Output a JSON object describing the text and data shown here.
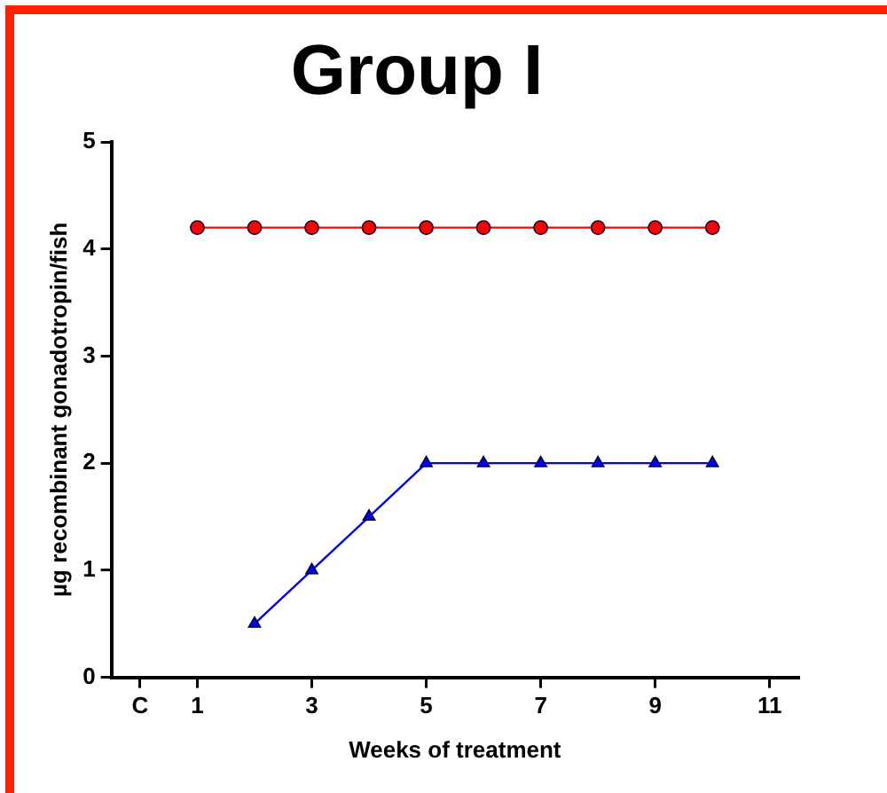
{
  "chart_data": {
    "type": "line",
    "title": "Group I",
    "xlabel": "Weeks of treatment",
    "ylabel": "µg recombinant gonadotropin/fish",
    "xlim": [
      -0.5,
      11.5
    ],
    "xticks": [
      {
        "value": 0,
        "label": "C"
      },
      1,
      3,
      5,
      7,
      9,
      11
    ],
    "ylim": [
      0,
      5
    ],
    "yticks": [
      0,
      1,
      2,
      3,
      4,
      5
    ],
    "grid": false,
    "legend": false,
    "line_style": "solid",
    "series": [
      {
        "color": "#ff0000",
        "marker": "circle",
        "x": [
          1,
          2,
          3,
          4,
          5,
          6,
          7,
          8,
          9,
          10
        ],
        "values": [
          4.2,
          4.2,
          4.2,
          4.2,
          4.2,
          4.2,
          4.2,
          4.2,
          4.2,
          4.2
        ]
      },
      {
        "color": "#0000ff",
        "marker": "triangle",
        "x": [
          2,
          3,
          4,
          5,
          6,
          7,
          8,
          9,
          10
        ],
        "values": [
          0.5,
          1,
          1.5,
          2,
          2,
          2,
          2,
          2,
          2
        ]
      }
    ]
  }
}
